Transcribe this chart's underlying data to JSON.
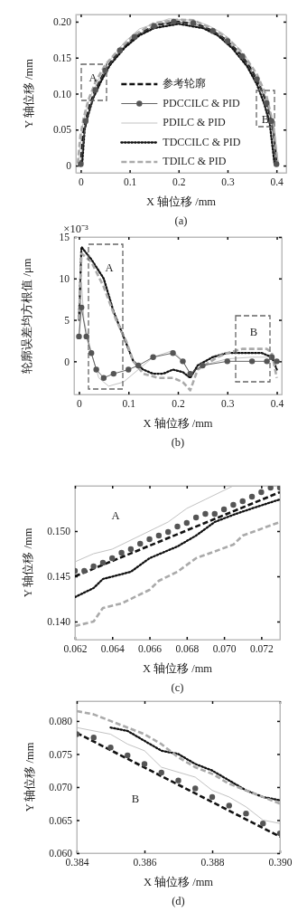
{
  "chart_data": [
    {
      "type": "line",
      "title": "(a)",
      "xlabel": "X 轴位移 /mm",
      "ylabel": "Y 轴位移 /mm",
      "xlim": [
        -0.01,
        0.42
      ],
      "ylim": [
        -0.01,
        0.21
      ],
      "xticks": [
        0,
        0.1,
        0.2,
        0.3,
        0.4
      ],
      "yticks": [
        0,
        {
          "value": 0.05,
          "label": "0.05"
        },
        {
          "value": 0.1,
          "label": "0.10"
        },
        {
          "value": 0.15,
          "label": "0.15"
        },
        {
          "value": 0.2,
          "label": "0.20"
        }
      ],
      "legend": "bottom",
      "annotations": [
        "A",
        "B"
      ],
      "series": [
        {
          "name": "参考轮廓",
          "color": "#111111",
          "line_style": "dashed",
          "marker": "none",
          "x": [
            0,
            0.005,
            0.01,
            0.02,
            0.03,
            0.05,
            0.07,
            0.1,
            0.13,
            0.16,
            0.2,
            0.24,
            0.27,
            0.3,
            0.33,
            0.35,
            0.37,
            0.38,
            0.39,
            0.395,
            0.4
          ],
          "values": [
            0,
            0.044,
            0.062,
            0.087,
            0.105,
            0.132,
            0.152,
            0.173,
            0.187,
            0.196,
            0.2,
            0.196,
            0.187,
            0.173,
            0.152,
            0.132,
            0.105,
            0.087,
            0.062,
            0.044,
            0
          ]
        },
        {
          "name": "PDCCILC & PID",
          "color": "#555555",
          "line_style": "solid",
          "marker": "circle",
          "x": [
            0,
            0.01,
            0.03,
            0.05,
            0.08,
            0.11,
            0.15,
            0.19,
            0.23,
            0.27,
            0.3,
            0.33,
            0.36,
            0.38,
            0.39,
            0.4
          ],
          "values": [
            0.002,
            0.062,
            0.105,
            0.132,
            0.16,
            0.179,
            0.194,
            0.2,
            0.198,
            0.187,
            0.173,
            0.152,
            0.12,
            0.087,
            0.062,
            0.002
          ]
        },
        {
          "name": "PDILC & PID",
          "color": "#bbbbbb",
          "line_style": "solid",
          "marker": "none",
          "x": [
            -0.004,
            0.002,
            0.008,
            0.018,
            0.04,
            0.06,
            0.09,
            0.12,
            0.18,
            0.23,
            0.26,
            0.29,
            0.32,
            0.34,
            0.36,
            0.378,
            0.392,
            0.404
          ],
          "values": [
            0.004,
            0.05,
            0.069,
            0.094,
            0.124,
            0.147,
            0.172,
            0.19,
            0.204,
            0.202,
            0.195,
            0.184,
            0.165,
            0.148,
            0.124,
            0.096,
            0.062,
            0.004
          ]
        },
        {
          "name": "TDCCILC & PID",
          "color": "#111111",
          "line_style": "dotted",
          "marker": "none",
          "x": [
            0.003,
            0.008,
            0.015,
            0.025,
            0.04,
            0.06,
            0.09,
            0.12,
            0.15,
            0.2,
            0.25,
            0.28,
            0.31,
            0.34,
            0.36,
            0.375,
            0.386,
            0.396
          ],
          "values": [
            0.003,
            0.05,
            0.07,
            0.093,
            0.115,
            0.14,
            0.164,
            0.181,
            0.191,
            0.197,
            0.191,
            0.181,
            0.163,
            0.138,
            0.113,
            0.086,
            0.06,
            0.003
          ]
        },
        {
          "name": "TDILC & PID",
          "color": "#aaaaaa",
          "line_style": "dashed",
          "marker": "none",
          "x": [
            -0.006,
            -0.001,
            0.006,
            0.015,
            0.03,
            0.05,
            0.08,
            0.11,
            0.15,
            0.2,
            0.23,
            0.27,
            0.3,
            0.33,
            0.36,
            0.38,
            0.394,
            0.402
          ],
          "values": [
            0.003,
            0.04,
            0.066,
            0.09,
            0.116,
            0.14,
            0.163,
            0.182,
            0.198,
            0.203,
            0.202,
            0.19,
            0.177,
            0.157,
            0.127,
            0.096,
            0.055,
            0.003
          ]
        }
      ]
    },
    {
      "type": "line",
      "title": "(b)",
      "xlabel": "X 轴位移 /mm",
      "ylabel": "轮廓误差均方根值 /μm",
      "xlim": [
        -0.01,
        0.41
      ],
      "ylim": [
        -4,
        15
      ],
      "xticks": [
        0,
        0.1,
        0.2,
        0.3,
        0.4
      ],
      "yticks": [
        0,
        5,
        10,
        15
      ],
      "annotations": [
        "A",
        "B",
        "×10⁻³"
      ],
      "series": [
        {
          "color": "#555555",
          "line_style": "solid",
          "marker": "circle",
          "x": [
            0,
            0.005,
            0.015,
            0.025,
            0.035,
            0.05,
            0.07,
            0.1,
            0.12,
            0.15,
            0.19,
            0.21,
            0.225,
            0.25,
            0.3,
            0.35,
            0.38,
            0.39,
            0.4
          ],
          "values": [
            3,
            6.5,
            3,
            1,
            -1,
            -2,
            -1.5,
            -1,
            -0.5,
            0.5,
            1,
            0,
            -1.5,
            -0.5,
            0,
            0,
            0,
            0.5,
            0
          ]
        },
        {
          "color": "#bbbbbb",
          "line_style": "solid",
          "x": [
            0,
            0.005,
            0.01,
            0.025,
            0.04,
            0.06,
            0.09,
            0.12,
            0.15,
            0.19,
            0.21,
            0.225,
            0.25,
            0.3,
            0.35,
            0.38,
            0.39,
            0.4
          ],
          "values": [
            3,
            9.5,
            5,
            1,
            -2,
            -3,
            -2.5,
            -1,
            0.5,
            1.3,
            0,
            -1.5,
            -0.5,
            0.3,
            0.5,
            0.5,
            1,
            -1
          ]
        },
        {
          "color": "#111111",
          "line_style": "dotted",
          "x": [
            0,
            0.005,
            0.025,
            0.05,
            0.07,
            0.09,
            0.1,
            0.11,
            0.13,
            0.15,
            0.17,
            0.19,
            0.21,
            0.225,
            0.24,
            0.27,
            0.3,
            0.33,
            0.37,
            0.39,
            0.4
          ],
          "values": [
            5,
            13.8,
            12.3,
            10,
            6,
            3,
            1.5,
            0,
            -1,
            -1.5,
            -1.5,
            -1,
            -1.3,
            -2,
            -0.5,
            0.5,
            1,
            1,
            1,
            0.5,
            -1
          ]
        },
        {
          "color": "#aaaaaa",
          "line_style": "dashed",
          "x": [
            0,
            0.005,
            0.025,
            0.05,
            0.075,
            0.095,
            0.11,
            0.13,
            0.16,
            0.19,
            0.21,
            0.225,
            0.24,
            0.28,
            0.3,
            0.33,
            0.36,
            0.38,
            0.39,
            0.4
          ],
          "values": [
            5,
            13,
            12,
            9,
            5,
            2.5,
            0,
            -1.5,
            -2,
            -2,
            -2.5,
            -3.5,
            -1,
            0.5,
            1,
            1.5,
            1.5,
            1.5,
            1,
            -2
          ]
        }
      ]
    },
    {
      "type": "line",
      "title": "(c)",
      "xlabel": "X 轴位移 /mm",
      "ylabel": "Y 轴位移 /mm",
      "xlim": [
        0.062,
        0.073
      ],
      "ylim": [
        0.138,
        0.155
      ],
      "xticks": [
        {
          "value": 0.062,
          "label": "0.062"
        },
        {
          "value": 0.064,
          "label": "0.064"
        },
        {
          "value": 0.066,
          "label": "0.066"
        },
        {
          "value": 0.068,
          "label": "0.068"
        },
        {
          "value": 0.07,
          "label": "0.070"
        },
        {
          "value": 0.072,
          "label": "0.072"
        }
      ],
      "yticks": [
        {
          "value": 0.14,
          "label": "0.140"
        },
        {
          "value": 0.145,
          "label": "0.145"
        },
        {
          "value": 0.15,
          "label": "0.150"
        }
      ],
      "annotations": [
        "A"
      ],
      "series": [
        {
          "color": "#111111",
          "line_style": "dashed",
          "x": [
            0.062,
            0.073
          ],
          "values": [
            0.145,
            0.1543
          ]
        },
        {
          "type": "scatter",
          "color": "#555555",
          "marker": "circle",
          "x": [
            0.062,
            0.0625,
            0.063,
            0.0635,
            0.064,
            0.0645,
            0.065,
            0.0655,
            0.066,
            0.0665,
            0.067,
            0.0675,
            0.068,
            0.0685,
            0.069,
            0.0695,
            0.07,
            0.0705,
            0.071,
            0.0715,
            0.072,
            0.0725,
            0.073
          ],
          "values": [
            0.1456,
            0.1456,
            0.1461,
            0.1465,
            0.147,
            0.1476,
            0.148,
            0.1486,
            0.1491,
            0.1495,
            0.1499,
            0.1505,
            0.1509,
            0.1515,
            0.1519,
            0.1519,
            0.1524,
            0.1529,
            0.1533,
            0.1538,
            0.1543,
            0.1548,
            0.1548
          ]
        },
        {
          "color": "#bbbbbb",
          "line_style": "solid",
          "x": [
            0.062,
            0.063,
            0.064,
            0.0655,
            0.067,
            0.068,
            0.069,
            0.0705
          ],
          "values": [
            0.1466,
            0.1475,
            0.148,
            0.1495,
            0.151,
            0.1525,
            0.1535,
            0.155
          ]
        },
        {
          "color": "#111111",
          "line_style": "dotted",
          "x": [
            0.062,
            0.063,
            0.0635,
            0.065,
            0.066,
            0.0675,
            0.0685,
            0.0695,
            0.0705,
            0.0715,
            0.073
          ],
          "values": [
            0.1427,
            0.1437,
            0.1447,
            0.1455,
            0.147,
            0.1483,
            0.1495,
            0.151,
            0.1518,
            0.1525,
            0.1535
          ]
        },
        {
          "color": "#aaaaaa",
          "line_style": "dashed",
          "x": [
            0.062,
            0.063,
            0.0635,
            0.0645,
            0.066,
            0.0665,
            0.0675,
            0.0685,
            0.0705,
            0.071,
            0.073
          ],
          "values": [
            0.1395,
            0.14,
            0.1415,
            0.142,
            0.1435,
            0.1445,
            0.1455,
            0.147,
            0.1485,
            0.1495,
            0.151
          ]
        }
      ]
    },
    {
      "type": "line",
      "title": "(d)",
      "xlabel": "X 轴位移 /mm",
      "ylabel": "Y 轴位移 /mm",
      "xlim": [
        0.384,
        0.39
      ],
      "ylim": [
        0.06,
        0.083
      ],
      "xticks": [
        {
          "value": 0.384,
          "label": "0.384"
        },
        {
          "value": 0.386,
          "label": "0.386"
        },
        {
          "value": 0.388,
          "label": "0.388"
        },
        {
          "value": 0.39,
          "label": "0.390"
        }
      ],
      "yticks": [
        {
          "value": 0.06,
          "label": "0.060"
        },
        {
          "value": 0.065,
          "label": "0.065"
        },
        {
          "value": 0.07,
          "label": "0.070"
        },
        {
          "value": 0.075,
          "label": "0.075"
        },
        {
          "value": 0.08,
          "label": "0.080"
        }
      ],
      "annotations": [
        "B"
      ],
      "series": [
        {
          "color": "#111111",
          "line_style": "dashed",
          "x": [
            0.384,
            0.39
          ],
          "values": [
            0.0782,
            0.0625
          ]
        },
        {
          "type": "scatter",
          "color": "#555555",
          "marker": "circle",
          "x": [
            0.384,
            0.3845,
            0.385,
            0.3855,
            0.386,
            0.3865,
            0.387,
            0.3875,
            0.388,
            0.3885,
            0.389,
            0.3895,
            0.39
          ],
          "values": [
            0.078,
            0.0775,
            0.076,
            0.0748,
            0.0735,
            0.0722,
            0.071,
            0.0698,
            0.0685,
            0.0672,
            0.066,
            0.0645,
            0.063
          ]
        },
        {
          "color": "#bbbbbb",
          "line_style": "solid",
          "x": [
            0.384,
            0.385,
            0.3855,
            0.386,
            0.3865,
            0.3875,
            0.388,
            0.3885,
            0.389,
            0.3895,
            0.39
          ],
          "values": [
            0.079,
            0.078,
            0.0765,
            0.0755,
            0.073,
            0.0715,
            0.0695,
            0.0685,
            0.067,
            0.065,
            0.0645
          ]
        },
        {
          "color": "#111111",
          "line_style": "dotted",
          "x": [
            0.385,
            0.3855,
            0.386,
            0.3865,
            0.387,
            0.3875,
            0.388,
            0.3885,
            0.389,
            0.3895,
            0.39
          ],
          "values": [
            0.079,
            0.0785,
            0.077,
            0.0755,
            0.075,
            0.0735,
            0.0725,
            0.071,
            0.0695,
            0.0685,
            0.068
          ]
        },
        {
          "color": "#aaaaaa",
          "line_style": "dashed",
          "x": [
            0.384,
            0.3845,
            0.385,
            0.3855,
            0.386,
            0.3865,
            0.387,
            0.3875,
            0.388,
            0.3885,
            0.389,
            0.3895,
            0.39
          ],
          "values": [
            0.0815,
            0.081,
            0.08,
            0.079,
            0.078,
            0.0765,
            0.0745,
            0.073,
            0.072,
            0.0705,
            0.0695,
            0.0685,
            0.0675
          ]
        }
      ]
    }
  ]
}
